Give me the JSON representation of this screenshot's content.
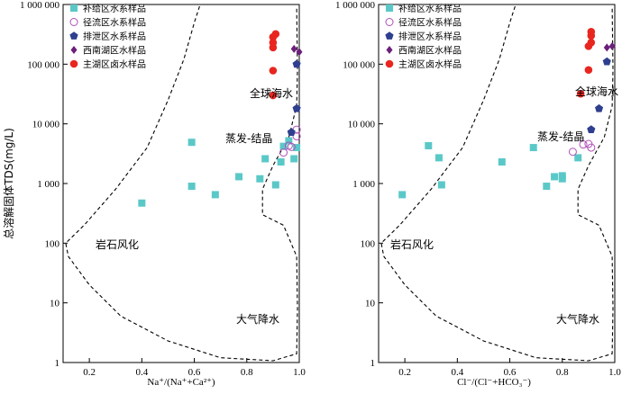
{
  "figure": {
    "ylabel": "总溶解固体TDS(mg/L)",
    "legend_items": [
      {
        "label": "补给区水系样品",
        "marker": "square",
        "color": "#5bc8c8"
      },
      {
        "label": "径流区水系样品",
        "marker": "open-circle",
        "color": "#b04fb8"
      },
      {
        "label": "排泄区水系样品",
        "marker": "pentagon",
        "color": "#2e3f8f"
      },
      {
        "label": "西南湖区水样品",
        "marker": "diamond",
        "color": "#6b1f7a"
      },
      {
        "label": "主湖区卤水样品",
        "marker": "circle",
        "color": "#e8261f"
      }
    ],
    "annotations": {
      "seawater": "全球海水",
      "evaporation": "蒸发-结晶",
      "rock": "岩石风化",
      "precipitation": "大气降水"
    }
  },
  "chart_data": [
    {
      "type": "scatter",
      "xlabel": "Na⁺/(Na⁺+Ca²⁺)",
      "ylabel": "总溶解固体TDS(mg/L)",
      "xlim": [
        0.1,
        1.0
      ],
      "ylim": [
        1,
        1000000
      ],
      "y_scale": "log",
      "x_ticks": [
        "0.2",
        "0.4",
        "0.6",
        "0.8",
        "1.0"
      ],
      "y_ticks": [
        "1",
        "10",
        "100",
        "1 000",
        "10 000",
        "100 000",
        "1 000 000"
      ],
      "series": [
        {
          "name": "补给区水系样品",
          "points": [
            [
              0.4,
              470
            ],
            [
              0.59,
              4900
            ],
            [
              0.59,
              900
            ],
            [
              0.68,
              650
            ],
            [
              0.77,
              1300
            ],
            [
              0.85,
              1200
            ],
            [
              0.87,
              2600
            ],
            [
              0.91,
              950
            ],
            [
              0.93,
              2300
            ],
            [
              0.98,
              2600
            ],
            [
              0.99,
              4000
            ],
            [
              0.94,
              4200
            ],
            [
              0.96,
              5200
            ]
          ]
        },
        {
          "name": "径流区水系样品",
          "points": [
            [
              0.94,
              3300
            ],
            [
              0.96,
              4300
            ],
            [
              0.97,
              4100
            ],
            [
              0.99,
              6200
            ],
            [
              0.99,
              8000
            ]
          ]
        },
        {
          "name": "排泄区水系样品",
          "points": [
            [
              0.97,
              7200
            ],
            [
              0.99,
              18000
            ],
            [
              0.99,
              100000
            ]
          ]
        },
        {
          "name": "西南湖区水样品",
          "points": [
            [
              0.98,
              180000
            ],
            [
              1.0,
              160000
            ]
          ]
        },
        {
          "name": "主湖区卤水样品",
          "points": [
            [
              0.9,
              30000
            ],
            [
              0.9,
              78000
            ],
            [
              0.9,
              190000
            ],
            [
              0.9,
              230000
            ],
            [
              0.9,
              285000
            ],
            [
              0.91,
              320000
            ]
          ]
        }
      ]
    },
    {
      "type": "scatter",
      "xlabel": "Cl⁻/(Cl⁻+HCO₃⁻)",
      "ylabel": "",
      "xlim": [
        0.1,
        1.0
      ],
      "ylim": [
        1,
        1000000
      ],
      "y_scale": "log",
      "x_ticks": [
        "0.2",
        "0.4",
        "0.6",
        "0.8",
        "1.0"
      ],
      "y_ticks": [
        "1",
        "10",
        "100",
        "1 000",
        "10 000",
        "100 000",
        "1 000 000"
      ],
      "series": [
        {
          "name": "补给区水系样品",
          "points": [
            [
              0.19,
              650
            ],
            [
              0.29,
              4300
            ],
            [
              0.33,
              2700
            ],
            [
              0.34,
              950
            ],
            [
              0.57,
              2300
            ],
            [
              0.69,
              4000
            ],
            [
              0.74,
              900
            ],
            [
              0.77,
              1300
            ],
            [
              0.8,
              1200
            ],
            [
              0.8,
              1350
            ],
            [
              0.86,
              2700
            ]
          ]
        },
        {
          "name": "径流区水系样品",
          "points": [
            [
              0.84,
              3400
            ],
            [
              0.88,
              4500
            ],
            [
              0.9,
              4600
            ],
            [
              0.91,
              4000
            ]
          ]
        },
        {
          "name": "排泄区水系样品",
          "points": [
            [
              0.91,
              8000
            ],
            [
              0.94,
              18000
            ],
            [
              0.97,
              110000
            ]
          ]
        },
        {
          "name": "西南湖区水样品",
          "points": [
            [
              0.97,
              190000
            ],
            [
              0.99,
              200000
            ]
          ]
        },
        {
          "name": "主湖区卤水样品",
          "points": [
            [
              0.87,
              32000
            ],
            [
              0.9,
              80000
            ],
            [
              0.9,
              200000
            ],
            [
              0.91,
              230000
            ],
            [
              0.91,
              300000
            ],
            [
              0.91,
              350000
            ]
          ]
        }
      ]
    }
  ]
}
